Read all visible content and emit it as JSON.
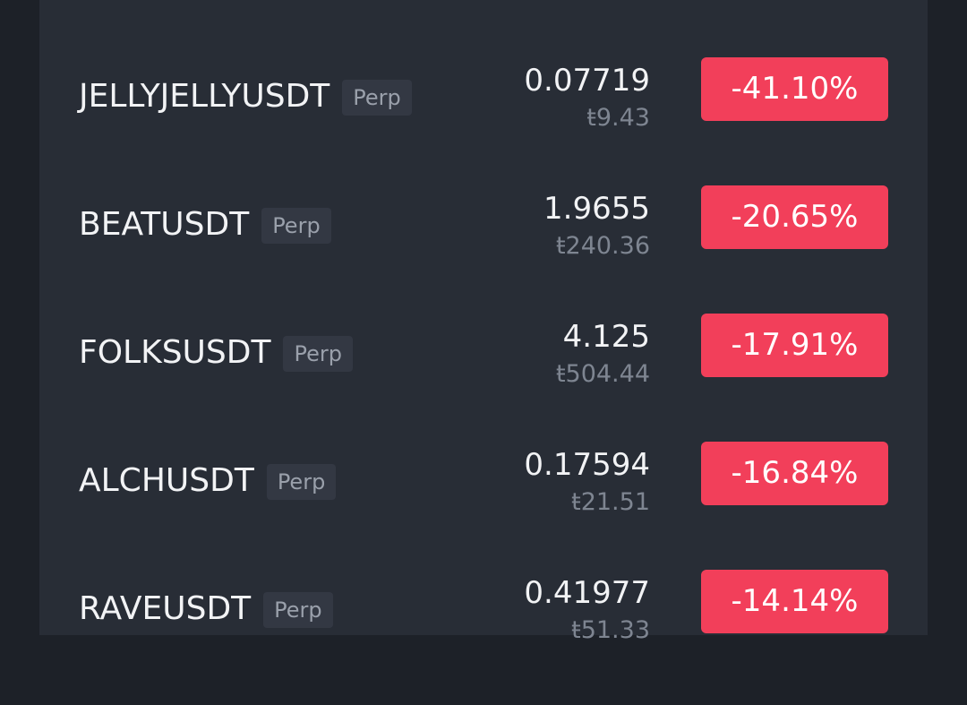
{
  "list": {
    "rows": [
      {
        "symbol": "JELLYJELLYUSDT",
        "tag": "Perp",
        "price": "0.07719",
        "local_price": "ŧ9.43",
        "change": "-41.10%"
      },
      {
        "symbol": "BEATUSDT",
        "tag": "Perp",
        "price": "1.9655",
        "local_price": "ŧ240.36",
        "change": "-20.65%"
      },
      {
        "symbol": "FOLKSUSDT",
        "tag": "Perp",
        "price": "4.125",
        "local_price": "ŧ504.44",
        "change": "-17.91%"
      },
      {
        "symbol": "ALCHUSDT",
        "tag": "Perp",
        "price": "0.17594",
        "local_price": "ŧ21.51",
        "change": "-16.84%"
      },
      {
        "symbol": "RAVEUSDT",
        "tag": "Perp",
        "price": "0.41977",
        "local_price": "ŧ51.33",
        "change": "-14.14%"
      }
    ]
  }
}
